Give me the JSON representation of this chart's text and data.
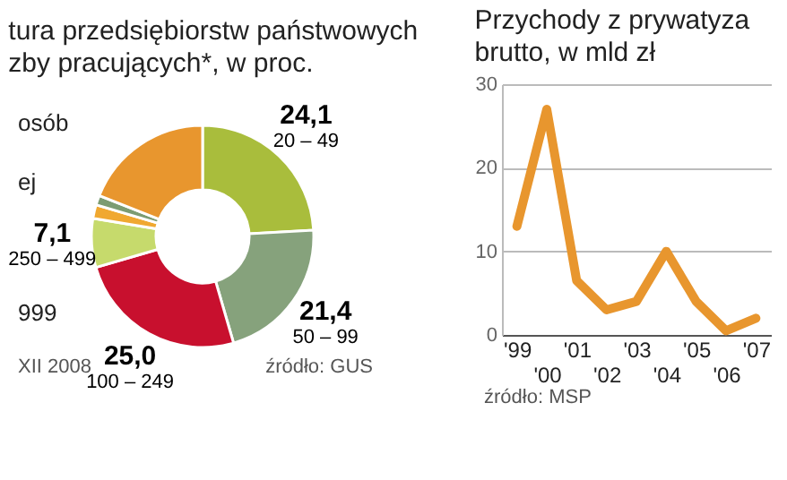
{
  "chart_data": [
    {
      "type": "donut",
      "title": "tura przedsiębiorstw państwowych",
      "subtitle": "zby pracujących*, w proc.",
      "categories": [
        "20 – 49",
        "50 – 99",
        "100 – 249",
        "250 – 499",
        null,
        null,
        null
      ],
      "values": [
        24.1,
        21.4,
        25.0,
        7.1,
        2.0,
        1.4,
        19.0
      ],
      "value_labels": [
        "24,1",
        "21,4",
        "25,0",
        "7,1",
        null,
        null,
        null
      ],
      "colors": [
        "#a9bd3c",
        "#86a27c",
        "#c8102e",
        "#c6da6c",
        "#f0a830",
        "#7c9c72",
        "#e8962e"
      ],
      "annotations": [
        "osób",
        "ej",
        "999",
        "XII 2008",
        "źródło: GUS"
      ]
    },
    {
      "type": "line",
      "title": "Przychody z prywatyza",
      "subtitle": "brutto, w mld zł",
      "categories": [
        "'99",
        "'00",
        "'01",
        "'02",
        "'03",
        "'04",
        "'05",
        "'06",
        "'07"
      ],
      "series": [
        {
          "color": "#e8962e",
          "values": [
            13,
            27,
            6.5,
            3,
            4,
            10,
            4,
            0.5,
            2
          ]
        }
      ],
      "ylim": [
        0,
        30
      ],
      "yticks": [
        0,
        10,
        20,
        30
      ],
      "grid": "y",
      "annotations": [
        "źródło: MSP"
      ]
    }
  ]
}
